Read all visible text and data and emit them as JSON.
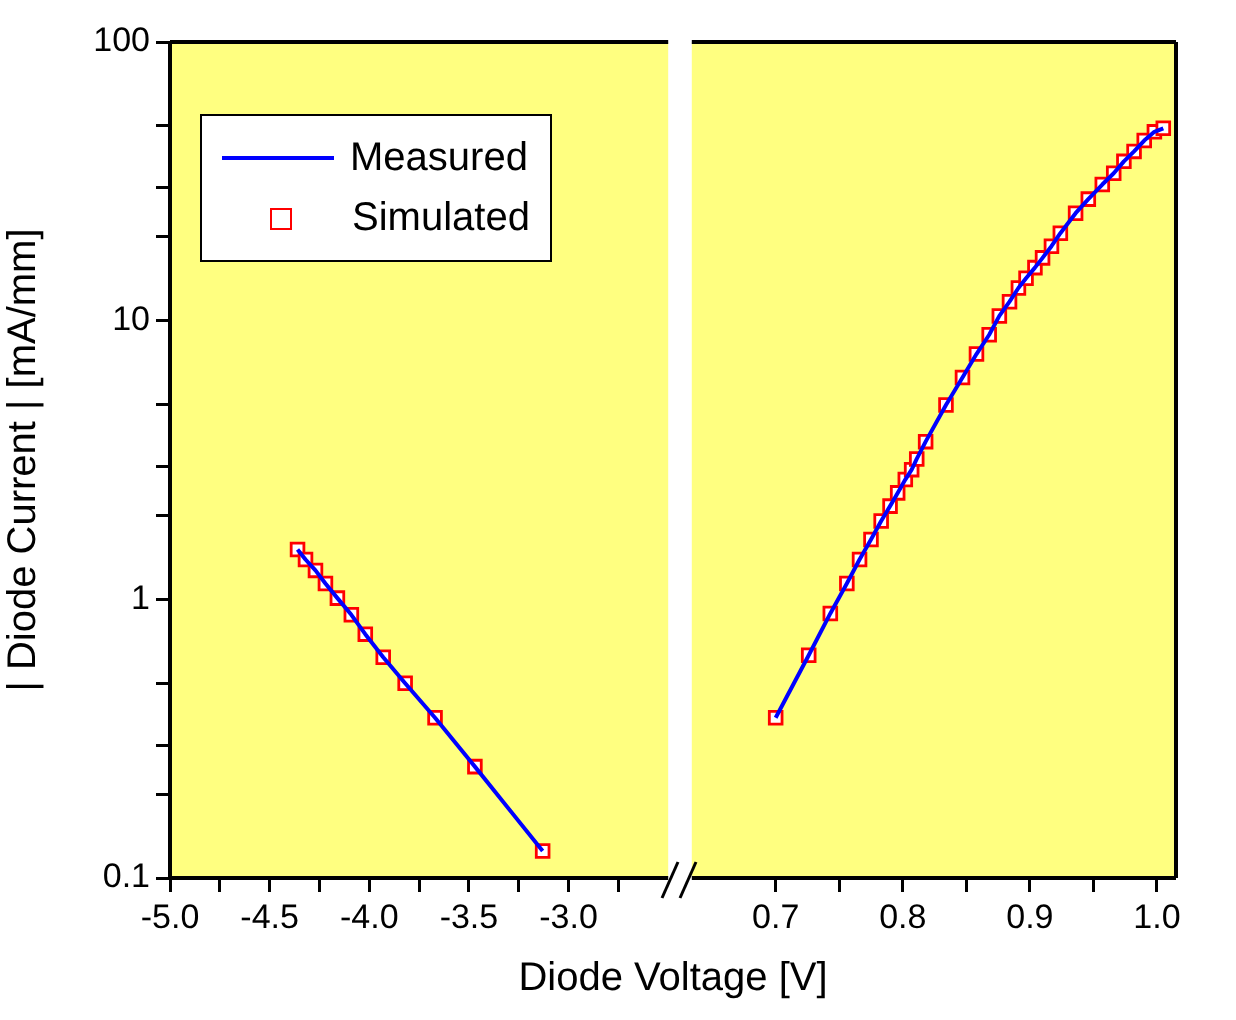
{
  "chart_data": [
    {
      "type": "line",
      "ylabel": "| Diode Current | [mA/mm]",
      "xlabel": "Diode Voltage [V]",
      "log": "y",
      "legend": "top left",
      "grid": false,
      "xlim": [
        -5.0,
        -2.5
      ],
      "xticks": [
        {
          "value": -5,
          "label": "-5.0"
        },
        {
          "value": -4.75,
          "label": null
        },
        {
          "value": -4.5,
          "label": "-4.5"
        },
        {
          "value": -4.25,
          "label": null
        },
        {
          "value": -4,
          "label": "-4.0"
        },
        {
          "value": -3.75,
          "label": null
        },
        {
          "value": -3.5,
          "label": "-3.5"
        },
        {
          "value": -3.25,
          "label": null
        },
        {
          "value": -3,
          "label": "-3.0"
        },
        {
          "value": -2.75,
          "label": null
        }
      ],
      "ylim": [
        0.1,
        100
      ],
      "yticks": [
        0.1,
        {
          "value": 0.2,
          "label": null
        },
        {
          "value": 0.3,
          "label": null
        },
        {
          "value": 0.5,
          "label": null
        },
        1,
        {
          "value": 2,
          "label": null
        },
        {
          "value": 3,
          "label": null
        },
        {
          "value": 5,
          "label": null
        },
        10,
        {
          "value": 20,
          "label": null
        },
        {
          "value": 30,
          "label": null
        },
        {
          "value": 50,
          "label": null
        },
        100
      ],
      "series": [
        {
          "name": "Measured",
          "type": "line",
          "marker": "none",
          "color": "#0000ff",
          "x": [
            -4.36,
            -4.32,
            -4.27,
            -4.22,
            -4.16,
            -4.09,
            -4.02,
            -3.93,
            -3.82,
            -3.67,
            -3.47,
            -3.13
          ],
          "values": [
            1.51,
            1.39,
            1.27,
            1.14,
            1.01,
            0.88,
            0.75,
            0.62,
            0.5,
            0.376,
            0.251,
            0.125
          ]
        },
        {
          "name": "Simulated",
          "type": "scatter",
          "marker": "square",
          "color": "#ff0000",
          "x": [
            -4.36,
            -4.32,
            -4.27,
            -4.22,
            -4.16,
            -4.09,
            -4.02,
            -3.93,
            -3.82,
            -3.67,
            -3.47,
            -3.13
          ],
          "values": [
            1.51,
            1.39,
            1.27,
            1.14,
            1.01,
            0.88,
            0.75,
            0.62,
            0.5,
            0.376,
            0.251,
            0.125
          ]
        }
      ]
    },
    {
      "type": "line",
      "log": "y",
      "tick_labels": "x",
      "grid": false,
      "xlim": [
        0.634,
        1.015
      ],
      "xticks": [
        0.7,
        {
          "value": 0.75,
          "label": null
        },
        0.8,
        {
          "value": 0.85,
          "label": null
        },
        0.9,
        {
          "value": 0.95,
          "label": null
        },
        {
          "value": 1,
          "label": "1.0"
        }
      ],
      "ylim": [
        0.1,
        100
      ],
      "series": [
        {
          "type": "line",
          "marker": "none",
          "color": "#0000ff",
          "x": [
            0.7,
            0.726,
            0.743,
            0.756,
            0.766,
            0.775,
            0.783,
            0.79,
            0.796,
            0.802,
            0.807,
            0.811,
            0.818,
            0.834,
            0.847,
            0.858,
            0.868,
            0.876,
            0.884,
            0.891,
            0.897,
            0.904,
            0.91,
            0.917,
            0.924,
            0.936,
            0.946,
            0.957,
            0.966,
            0.974,
            0.982,
            0.99,
            0.998,
            1.005
          ],
          "values": [
            0.376,
            0.63,
            0.89,
            1.14,
            1.39,
            1.64,
            1.91,
            2.16,
            2.41,
            2.69,
            2.92,
            3.19,
            3.68,
            4.98,
            6.25,
            7.59,
            8.9,
            10.4,
            11.7,
            13.1,
            14.2,
            15.5,
            16.8,
            18.5,
            20.6,
            24.3,
            27.3,
            30.8,
            33.8,
            37.3,
            40.5,
            44.3,
            47.6,
            49
          ]
        },
        {
          "type": "scatter",
          "marker": "square",
          "color": "#ff0000",
          "x": [
            0.7,
            0.726,
            0.743,
            0.756,
            0.766,
            0.775,
            0.783,
            0.79,
            0.796,
            0.802,
            0.807,
            0.811,
            0.818,
            0.834,
            0.847,
            0.858,
            0.868,
            0.876,
            0.884,
            0.891,
            0.897,
            0.904,
            0.91,
            0.917,
            0.924,
            0.936,
            0.946,
            0.957,
            0.966,
            0.974,
            0.982,
            0.99,
            0.998,
            1.005
          ],
          "values": [
            0.376,
            0.63,
            0.89,
            1.14,
            1.39,
            1.64,
            1.91,
            2.16,
            2.41,
            2.69,
            2.92,
            3.19,
            3.68,
            4.98,
            6.25,
            7.59,
            8.9,
            10.4,
            11.7,
            13.1,
            14.2,
            15.5,
            16.8,
            18.5,
            20.6,
            24.3,
            27.3,
            30.8,
            33.8,
            37.3,
            40.5,
            44.3,
            47.6,
            49
          ]
        }
      ]
    }
  ]
}
